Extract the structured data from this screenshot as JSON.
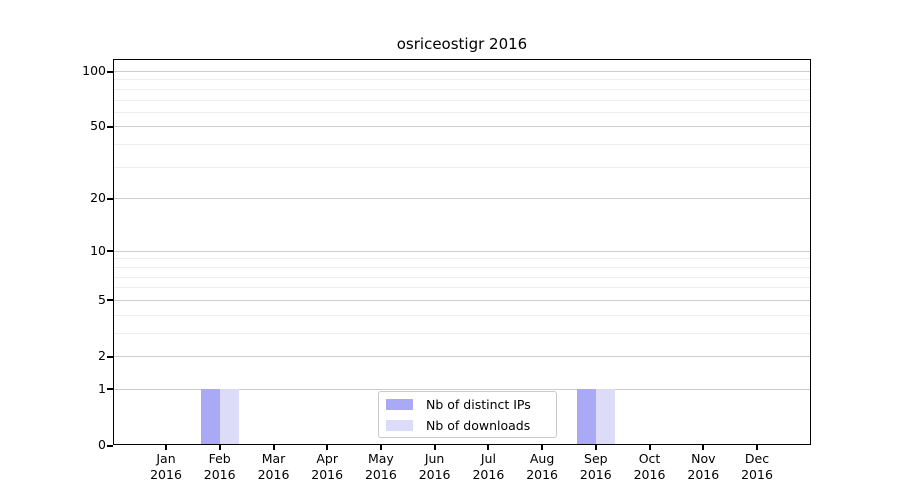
{
  "chart_data": {
    "type": "bar",
    "title": "osriceostigr 2016",
    "categories": [
      "Jan 2016",
      "Feb 2016",
      "Mar 2016",
      "Apr 2016",
      "May 2016",
      "Jun 2016",
      "Jul 2016",
      "Aug 2016",
      "Sep 2016",
      "Oct 2016",
      "Nov 2016",
      "Dec 2016"
    ],
    "series": [
      {
        "name": "Nb of distinct IPs",
        "color": "#a9a9f5",
        "values": [
          0,
          1,
          0,
          0,
          0,
          0,
          0,
          0,
          1,
          0,
          0,
          0
        ]
      },
      {
        "name": "Nb of downloads",
        "color": "#dcdcf8",
        "values": [
          0,
          1,
          0,
          0,
          0,
          0,
          0,
          0,
          1,
          0,
          0,
          0
        ]
      }
    ],
    "y_axis": {
      "scale": "log1p",
      "tick_labels": [
        0,
        1,
        2,
        5,
        10,
        20,
        50,
        100
      ],
      "minor_gridlines": [
        3,
        4,
        6,
        7,
        8,
        9,
        30,
        40,
        60,
        70,
        80,
        90
      ],
      "range_top": 116
    },
    "x_axis": {
      "tick_style": "month over year, two lines"
    },
    "legend_position": "lower center",
    "grid": "horizontal, major and minor"
  },
  "colors": {
    "major_grid": "#cccccc",
    "minor_grid": "#eeeeee",
    "axis": "#000000",
    "background": "#ffffff",
    "text": "#000000",
    "legend_border": "#c9c9c9"
  }
}
